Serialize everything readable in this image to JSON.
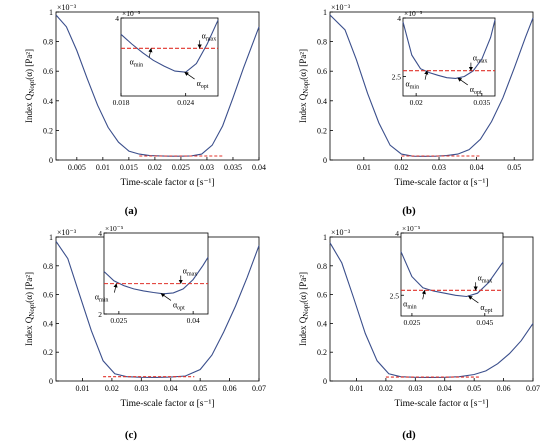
{
  "figure": {
    "ylabel_text": "Index Q",
    "ylabel_sub": "Nopt",
    "ylabel_tail": "(α) [Pa²]",
    "xlabel_text": "Time-scale factor  α [s⁻¹]",
    "main_exp": "×10⁻³",
    "inset_exp": "×10⁻⁵",
    "ann_max": "α",
    "ann_max_sub": "max",
    "ann_min": "α",
    "ann_min_sub": "min",
    "ann_opt": "α",
    "ann_opt_sub": "opt"
  },
  "chart_data": [
    {
      "type": "line",
      "panel_label": "(a)",
      "xlim": [
        0.001,
        0.04
      ],
      "ylim": [
        0,
        1
      ],
      "xticks": [
        "0.005",
        "0.01",
        "0.015",
        "0.02",
        "0.025",
        "0.03",
        "0.035",
        "0.04"
      ],
      "yticks": [
        "0",
        "0.2",
        "0.4",
        "0.6",
        "0.8",
        "1"
      ],
      "series": [
        {
          "x": [
            0.001,
            0.003,
            0.005,
            0.007,
            0.009,
            0.011,
            0.013,
            0.015,
            0.017,
            0.019,
            0.021,
            0.023,
            0.025,
            0.027,
            0.029,
            0.031,
            0.033,
            0.035,
            0.037,
            0.04
          ],
          "y": [
            0.98,
            0.9,
            0.74,
            0.55,
            0.37,
            0.22,
            0.12,
            0.06,
            0.04,
            0.03,
            0.028,
            0.026,
            0.026,
            0.028,
            0.04,
            0.1,
            0.23,
            0.42,
            0.62,
            0.9
          ]
        }
      ],
      "threshold": {
        "x": [
          0.017,
          0.033
        ],
        "y": 0.027
      },
      "inset": {
        "xlim": [
          0.018,
          0.027
        ],
        "ylim": [
          0.4,
          4
        ],
        "xticks": [
          "0.018",
          "0.024"
        ],
        "xtick_vals": [
          0.018,
          0.024
        ],
        "yticks": [
          "4"
        ],
        "ytick_vals": [
          4
        ],
        "x": [
          0.018,
          0.019,
          0.02,
          0.021,
          0.022,
          0.023,
          0.024,
          0.025,
          0.026,
          0.027
        ],
        "y": [
          3.25,
          2.8,
          2.4,
          2.05,
          1.78,
          1.55,
          1.5,
          1.9,
          2.8,
          3.9
        ],
        "threshold": 2.6,
        "a_min": 0.0208,
        "a_opt": 0.0239,
        "a_max": 0.0253
      }
    },
    {
      "type": "line",
      "panel_label": "(b)",
      "xlim": [
        0.001,
        0.055
      ],
      "ylim": [
        0,
        1
      ],
      "xticks": [
        "0.01",
        "0.02",
        "0.03",
        "0.04",
        "0.05"
      ],
      "yticks": [
        "0",
        "0.2",
        "0.4",
        "0.6",
        "0.8",
        "1"
      ],
      "series": [
        {
          "x": [
            0.001,
            0.005,
            0.008,
            0.011,
            0.014,
            0.017,
            0.02,
            0.023,
            0.026,
            0.029,
            0.032,
            0.035,
            0.038,
            0.041,
            0.044,
            0.047,
            0.05,
            0.053,
            0.055
          ],
          "y": [
            0.98,
            0.88,
            0.68,
            0.45,
            0.25,
            0.1,
            0.04,
            0.026,
            0.025,
            0.026,
            0.03,
            0.04,
            0.07,
            0.14,
            0.26,
            0.42,
            0.62,
            0.83,
            0.96
          ]
        }
      ],
      "threshold": {
        "x": [
          0.02,
          0.041
        ],
        "y": 0.027
      },
      "inset": {
        "xlim": [
          0.017,
          0.038
        ],
        "ylim": [
          2,
          4
        ],
        "xticks": [
          "0.02",
          "0.035"
        ],
        "xtick_vals": [
          0.02,
          0.035
        ],
        "yticks": [
          "2.5",
          "4"
        ],
        "ytick_vals": [
          2.5,
          4
        ],
        "x": [
          0.017,
          0.019,
          0.021,
          0.023,
          0.025,
          0.027,
          0.029,
          0.031,
          0.033,
          0.035,
          0.037,
          0.038
        ],
        "y": [
          3.9,
          3.05,
          2.7,
          2.6,
          2.53,
          2.47,
          2.45,
          2.5,
          2.64,
          2.95,
          3.5,
          3.95
        ],
        "threshold": 2.65,
        "a_min": 0.0225,
        "a_opt": 0.0295,
        "a_max": 0.0325
      }
    },
    {
      "type": "line",
      "panel_label": "(c)",
      "xlim": [
        0.001,
        0.07
      ],
      "ylim": [
        0,
        1
      ],
      "xticks": [
        "0.01",
        "0.02",
        "0.03",
        "0.04",
        "0.05",
        "0.06",
        "0.07"
      ],
      "yticks": [
        "0",
        "0.2",
        "0.4",
        "0.6",
        "0.8",
        "1"
      ],
      "series": [
        {
          "x": [
            0.001,
            0.005,
            0.009,
            0.013,
            0.017,
            0.021,
            0.025,
            0.03,
            0.035,
            0.04,
            0.045,
            0.05,
            0.054,
            0.058,
            0.062,
            0.066,
            0.07
          ],
          "y": [
            0.97,
            0.85,
            0.6,
            0.35,
            0.14,
            0.05,
            0.03,
            0.026,
            0.025,
            0.027,
            0.035,
            0.08,
            0.18,
            0.34,
            0.52,
            0.72,
            0.94
          ]
        }
      ],
      "threshold": {
        "x": [
          0.017,
          0.048
        ],
        "y": 0.03
      },
      "inset": {
        "xlim": [
          0.022,
          0.043
        ],
        "ylim": [
          2,
          4
        ],
        "xticks": [
          "0.025",
          "0.04"
        ],
        "xtick_vals": [
          0.025,
          0.04
        ],
        "yticks": [
          "2",
          "4"
        ],
        "ytick_vals": [
          2,
          4
        ],
        "x": [
          0.022,
          0.024,
          0.026,
          0.028,
          0.03,
          0.032,
          0.034,
          0.036,
          0.038,
          0.04,
          0.042,
          0.043
        ],
        "y": [
          3.05,
          2.82,
          2.7,
          2.62,
          2.57,
          2.53,
          2.5,
          2.52,
          2.62,
          2.85,
          3.2,
          3.4
        ],
        "threshold": 2.75,
        "a_min": 0.0245,
        "a_opt": 0.0335,
        "a_max": 0.0375
      }
    },
    {
      "type": "line",
      "panel_label": "(d)",
      "xlim": [
        0.001,
        0.07
      ],
      "ylim": [
        0,
        1
      ],
      "xticks": [
        "0.01",
        "0.02",
        "0.03",
        "0.04",
        "0.05",
        "0.06",
        "0.07"
      ],
      "yticks": [
        "0",
        "0.2",
        "0.4",
        "0.6",
        "0.8",
        "1"
      ],
      "series": [
        {
          "x": [
            0.001,
            0.005,
            0.009,
            0.013,
            0.017,
            0.021,
            0.025,
            0.03,
            0.035,
            0.04,
            0.045,
            0.05,
            0.054,
            0.058,
            0.062,
            0.066,
            0.07
          ],
          "y": [
            0.96,
            0.82,
            0.58,
            0.33,
            0.14,
            0.05,
            0.03,
            0.026,
            0.025,
            0.026,
            0.03,
            0.045,
            0.07,
            0.12,
            0.19,
            0.28,
            0.4
          ]
        }
      ],
      "threshold": {
        "x": [
          0.02,
          0.052
        ],
        "y": 0.027
      },
      "inset": {
        "xlim": [
          0.022,
          0.05
        ],
        "ylim": [
          2,
          4
        ],
        "xticks": [
          "0.025",
          "0.045"
        ],
        "xtick_vals": [
          0.025,
          0.045
        ],
        "yticks": [
          "2.5",
          "4"
        ],
        "ytick_vals": [
          2.5,
          4
        ],
        "x": [
          0.022,
          0.025,
          0.028,
          0.031,
          0.034,
          0.037,
          0.04,
          0.043,
          0.046,
          0.048,
          0.05
        ],
        "y": [
          3.55,
          2.95,
          2.68,
          2.6,
          2.55,
          2.5,
          2.47,
          2.55,
          2.8,
          3.05,
          3.3
        ],
        "threshold": 2.62,
        "a_min": 0.0285,
        "a_opt": 0.0405,
        "a_max": 0.0425
      }
    }
  ]
}
